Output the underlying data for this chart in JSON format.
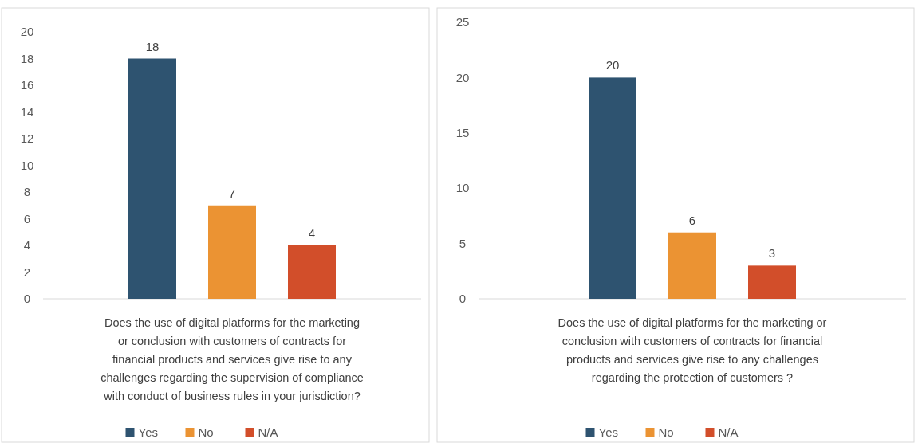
{
  "chart_data": [
    {
      "type": "bar",
      "categories": [
        null
      ],
      "xlabel": "Does the use of digital platforms for the marketing or conclusion with customers of contracts for financial products and services give rise to any challenges regarding the supervision of compliance with conduct of business rules in your jurisdiction?",
      "series": [
        {
          "name": "Yes",
          "color": "#2e5370",
          "values": [
            18
          ]
        },
        {
          "name": "No",
          "color": "#eb9333",
          "values": [
            7
          ]
        },
        {
          "name": "N/A",
          "color": "#d24e2a",
          "values": [
            4
          ]
        }
      ],
      "ylim": [
        0,
        20
      ],
      "yticks": [
        0,
        2,
        4,
        6,
        8,
        10,
        12,
        14,
        16,
        18,
        20
      ],
      "data_labels": true,
      "legend": "bottom",
      "grid": false
    },
    {
      "type": "bar",
      "categories": [
        null
      ],
      "xlabel": "Does the use of digital platforms for the marketing or conclusion with customers of contracts for financial products and services give rise to any challenges regarding the protection of customers ?",
      "series": [
        {
          "name": "Yes",
          "color": "#2e5370",
          "values": [
            20
          ]
        },
        {
          "name": "No",
          "color": "#eb9333",
          "values": [
            6
          ]
        },
        {
          "name": "N/A",
          "color": "#d24e2a",
          "values": [
            3
          ]
        }
      ],
      "ylim": [
        0,
        25
      ],
      "yticks": [
        0,
        5,
        10,
        15,
        20,
        25
      ],
      "data_labels": true,
      "legend": "bottom",
      "grid": false
    }
  ]
}
